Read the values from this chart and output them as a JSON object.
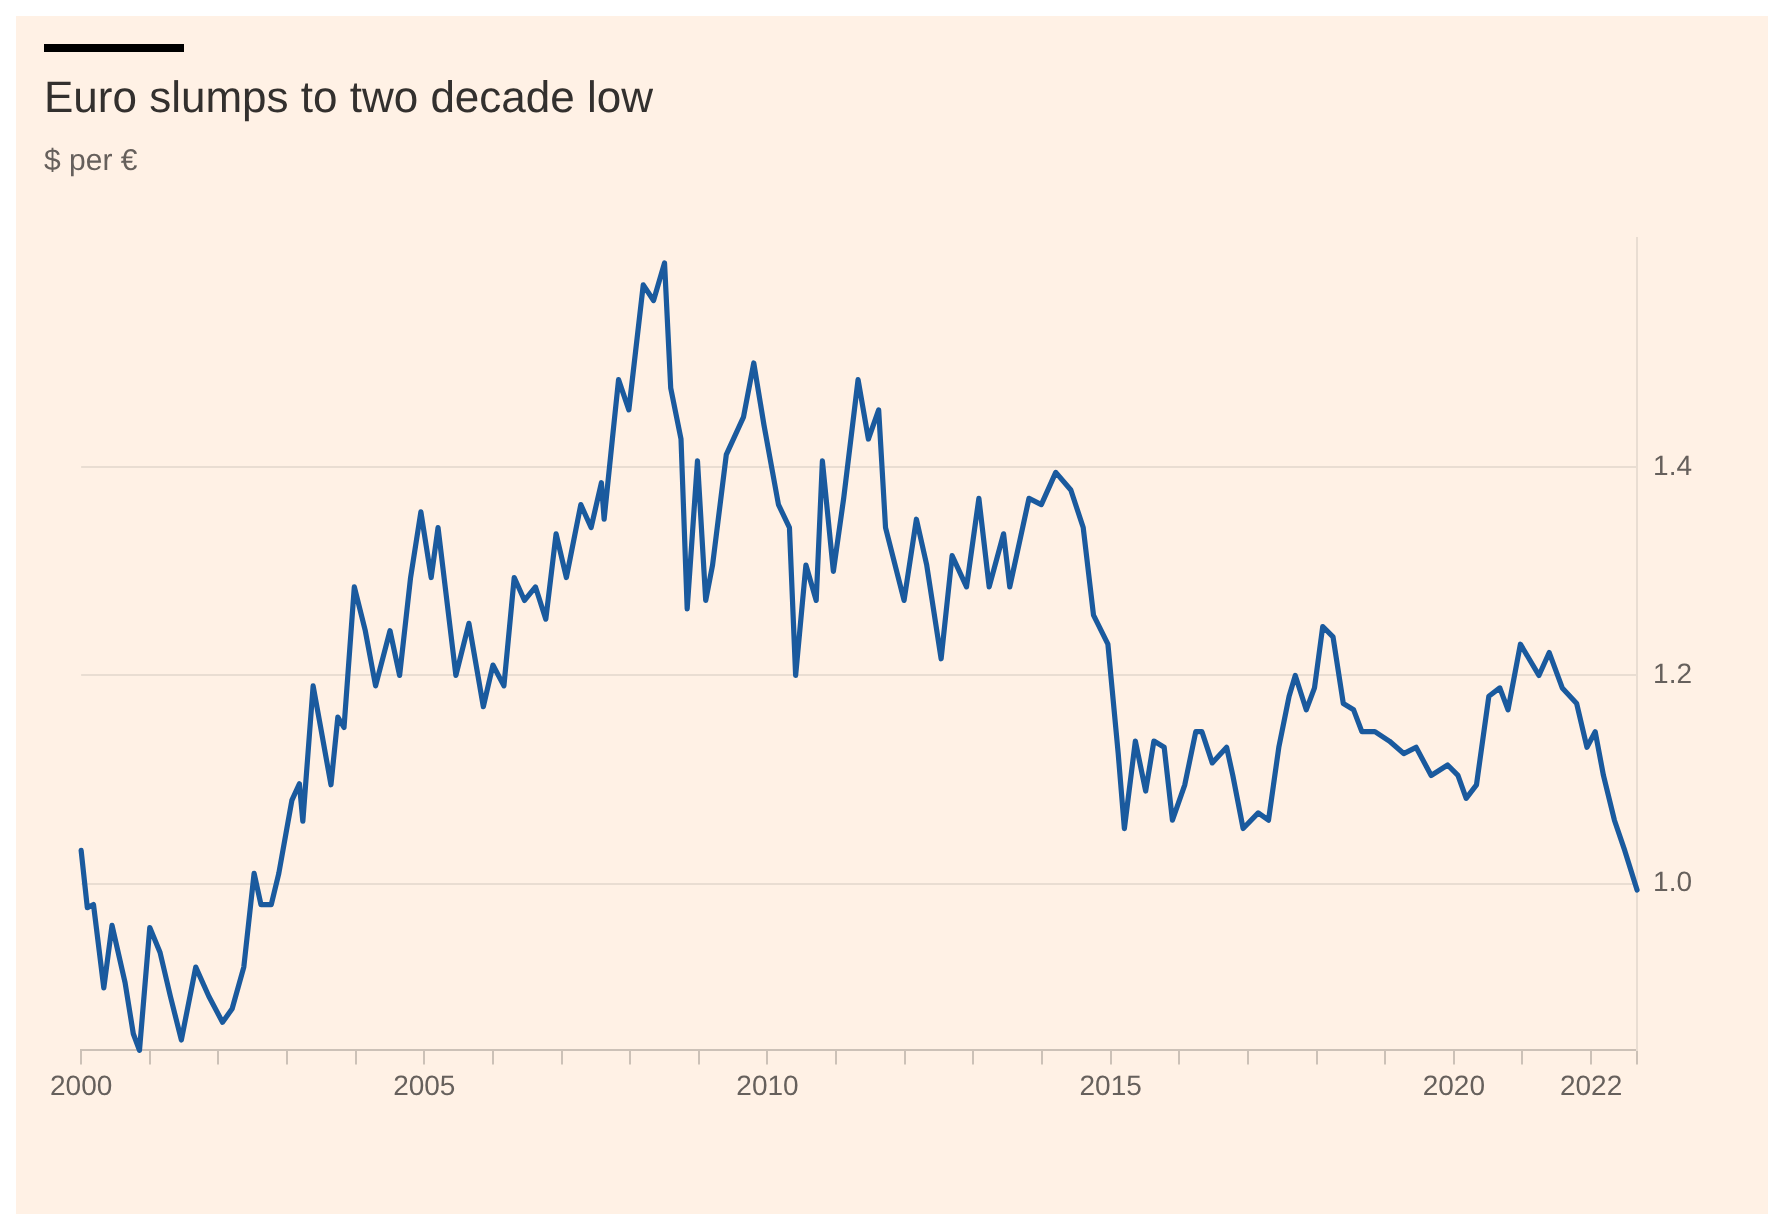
{
  "chart_data": {
    "type": "line",
    "title": "Euro slumps to two decade low",
    "subtitle": "$ per €",
    "x": [
      2000.0,
      2000.09,
      2000.18,
      2000.33,
      2000.45,
      2000.64,
      2000.76,
      2000.85,
      2001.0,
      2001.15,
      2001.3,
      2001.46,
      2001.67,
      2001.86,
      2002.06,
      2002.2,
      2002.37,
      2002.52,
      2002.62,
      2002.77,
      2002.88,
      2003.07,
      2003.18,
      2003.23,
      2003.38,
      2003.49,
      2003.64,
      2003.74,
      2003.83,
      2003.98,
      2004.14,
      2004.29,
      2004.5,
      2004.64,
      2004.8,
      2004.95,
      2005.1,
      2005.2,
      2005.46,
      2005.65,
      2005.86,
      2006.0,
      2006.16,
      2006.31,
      2006.46,
      2006.62,
      2006.77,
      2006.92,
      2007.07,
      2007.28,
      2007.43,
      2007.58,
      2007.62,
      2007.74,
      2007.83,
      2007.98,
      2008.19,
      2008.34,
      2008.5,
      2008.59,
      2008.74,
      2008.83,
      2008.98,
      2009.1,
      2009.2,
      2009.4,
      2009.65,
      2009.8,
      2009.95,
      2010.16,
      2010.32,
      2010.41,
      2010.56,
      2010.71,
      2010.8,
      2010.96,
      2011.11,
      2011.32,
      2011.47,
      2011.62,
      2011.72,
      2011.99,
      2012.17,
      2012.32,
      2012.53,
      2012.69,
      2012.9,
      2013.08,
      2013.23,
      2013.44,
      2013.53,
      2013.81,
      2013.99,
      2014.2,
      2014.42,
      2014.6,
      2014.75,
      2014.96,
      2015.11,
      2015.2,
      2015.36,
      2015.51,
      2015.63,
      2015.78,
      2015.9,
      2016.08,
      2016.24,
      2016.33,
      2016.48,
      2016.69,
      2016.78,
      2016.93,
      2017.15,
      2017.3,
      2017.45,
      2017.6,
      2017.69,
      2017.85,
      2017.97,
      2018.09,
      2018.24,
      2018.39,
      2018.54,
      2018.66,
      2018.85,
      2019.06,
      2019.27,
      2019.45,
      2019.67,
      2019.91,
      2020.06,
      2020.18,
      2020.33,
      2020.51,
      2020.67,
      2020.79,
      2020.97,
      2021.24,
      2021.39,
      2021.58,
      2021.79,
      2021.94,
      2022.06,
      2022.18,
      2022.34,
      2022.49,
      2022.67
    ],
    "series": [
      {
        "color": "#1a5a9e",
        "values": [
          1.032,
          0.977,
          0.98,
          0.9,
          0.96,
          0.905,
          0.856,
          0.84,
          0.958,
          0.934,
          0.892,
          0.85,
          0.92,
          0.892,
          0.867,
          0.88,
          0.92,
          1.01,
          0.98,
          0.98,
          1.01,
          1.08,
          1.096,
          1.06,
          1.19,
          1.15,
          1.095,
          1.16,
          1.15,
          1.285,
          1.243,
          1.19,
          1.243,
          1.2,
          1.294,
          1.357,
          1.294,
          1.342,
          1.2,
          1.25,
          1.17,
          1.21,
          1.19,
          1.294,
          1.272,
          1.285,
          1.254,
          1.336,
          1.294,
          1.364,
          1.342,
          1.385,
          1.35,
          1.427,
          1.484,
          1.455,
          1.575,
          1.56,
          1.596,
          1.476,
          1.427,
          1.264,
          1.406,
          1.272,
          1.306,
          1.412,
          1.448,
          1.5,
          1.44,
          1.364,
          1.342,
          1.2,
          1.306,
          1.272,
          1.406,
          1.3,
          1.37,
          1.484,
          1.427,
          1.455,
          1.342,
          1.272,
          1.35,
          1.306,
          1.216,
          1.315,
          1.285,
          1.37,
          1.285,
          1.336,
          1.285,
          1.37,
          1.364,
          1.395,
          1.378,
          1.342,
          1.258,
          1.23,
          1.125,
          1.053,
          1.137,
          1.089,
          1.137,
          1.131,
          1.061,
          1.095,
          1.146,
          1.146,
          1.116,
          1.131,
          1.104,
          1.053,
          1.068,
          1.061,
          1.131,
          1.18,
          1.2,
          1.167,
          1.188,
          1.247,
          1.237,
          1.173,
          1.167,
          1.146,
          1.146,
          1.137,
          1.125,
          1.131,
          1.104,
          1.114,
          1.104,
          1.082,
          1.095,
          1.18,
          1.188,
          1.167,
          1.23,
          1.2,
          1.222,
          1.188,
          1.173,
          1.131,
          1.146,
          1.104,
          1.061,
          1.032,
          0.994
        ]
      }
    ],
    "xlim": [
      2000,
      2022.67
    ],
    "xticks": [
      2000,
      {
        "value": 2001,
        "label": null
      },
      {
        "value": 2002,
        "label": null
      },
      {
        "value": 2003,
        "label": null
      },
      {
        "value": 2004,
        "label": null
      },
      2005,
      {
        "value": 2006,
        "label": null
      },
      {
        "value": 2007,
        "label": null
      },
      {
        "value": 2008,
        "label": null
      },
      {
        "value": 2009,
        "label": null
      },
      2010,
      {
        "value": 2011,
        "label": null
      },
      {
        "value": 2012,
        "label": null
      },
      {
        "value": 2013,
        "label": null
      },
      {
        "value": 2014,
        "label": null
      },
      2015,
      {
        "value": 2016,
        "label": null
      },
      {
        "value": 2017,
        "label": null
      },
      {
        "value": 2018,
        "label": null
      },
      {
        "value": 2019,
        "label": null
      },
      2020,
      {
        "value": 2021,
        "label": null
      },
      {
        "value": 2022,
        "label": "2022"
      },
      {
        "value": 2022.67,
        "label": null
      }
    ],
    "yticks": [
      {
        "value": 1.0,
        "label": "1.0"
      },
      {
        "value": 1.2,
        "label": "1.2"
      },
      {
        "value": 1.4,
        "label": "1.4"
      }
    ],
    "ylim": [
      0.84,
      1.62
    ],
    "grid": "y",
    "legend": false,
    "marker": "none",
    "line_style": "solid"
  }
}
